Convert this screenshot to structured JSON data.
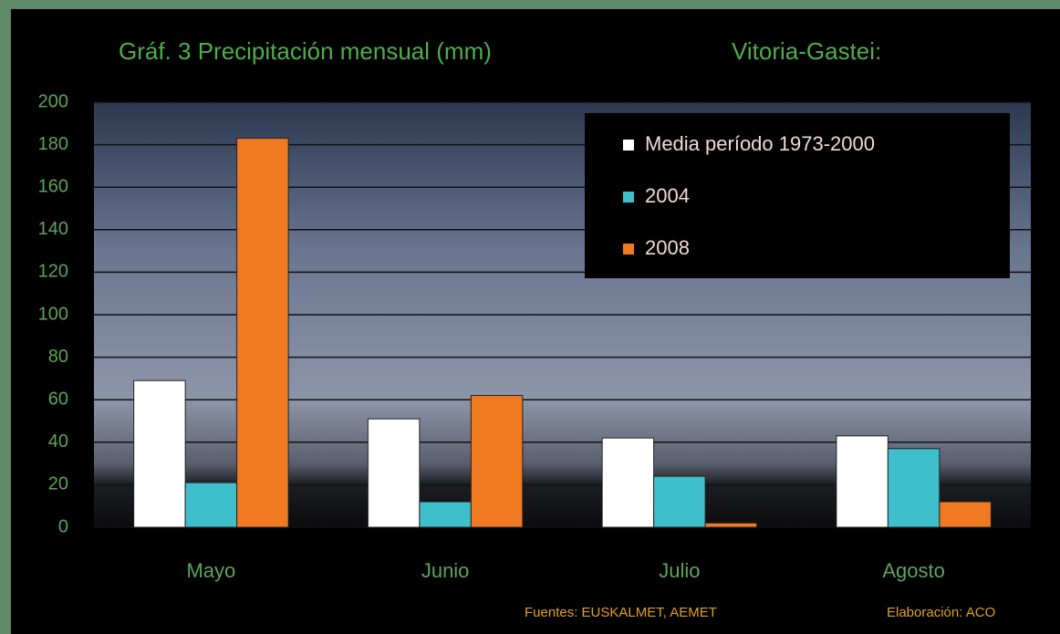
{
  "chart_data": {
    "type": "bar",
    "title": "Gráf. 3   Precipitación mensual (mm)",
    "location": "Vitoria-Gastei:",
    "categories": [
      "Mayo",
      "Junio",
      "Julio",
      "Agosto"
    ],
    "series": [
      {
        "name": "Media período 1973-2000",
        "color": "#ffffff",
        "values": [
          69,
          51,
          42,
          43
        ]
      },
      {
        "name": "2004",
        "color": "#3fbfcc",
        "values": [
          21,
          12,
          24,
          37
        ]
      },
      {
        "name": "2008",
        "color": "#f07a22",
        "values": [
          183,
          62,
          2,
          12
        ]
      }
    ],
    "ylim": [
      0,
      200
    ],
    "yticks": [
      0,
      20,
      40,
      60,
      80,
      100,
      120,
      140,
      160,
      180,
      200
    ],
    "grid": true,
    "legend": "upper right",
    "source": "Fuentes: EUSKALMET, AEMET",
    "credit": "Elaboración: ACO"
  }
}
